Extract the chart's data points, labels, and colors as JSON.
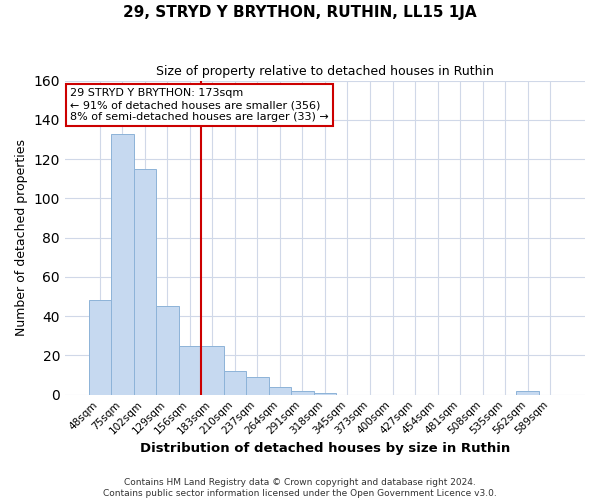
{
  "title": "29, STRYD Y BRYTHON, RUTHIN, LL15 1JA",
  "subtitle": "Size of property relative to detached houses in Ruthin",
  "xlabel": "Distribution of detached houses by size in Ruthin",
  "ylabel": "Number of detached properties",
  "categories": [
    "48sqm",
    "75sqm",
    "102sqm",
    "129sqm",
    "156sqm",
    "183sqm",
    "210sqm",
    "237sqm",
    "264sqm",
    "291sqm",
    "318sqm",
    "345sqm",
    "373sqm",
    "400sqm",
    "427sqm",
    "454sqm",
    "481sqm",
    "508sqm",
    "535sqm",
    "562sqm",
    "589sqm"
  ],
  "values": [
    48,
    133,
    115,
    45,
    25,
    25,
    12,
    9,
    4,
    2,
    1,
    0,
    0,
    0,
    0,
    0,
    0,
    0,
    0,
    2,
    0
  ],
  "bar_color": "#c6d9f0",
  "bar_edge_color": "#8db3d8",
  "background_color": "#ffffff",
  "grid_color": "#d0d8e8",
  "vline_x": 5,
  "vline_color": "#cc0000",
  "annotation_text": "29 STRYD Y BRYTHON: 173sqm\n← 91% of detached houses are smaller (356)\n8% of semi-detached houses are larger (33) →",
  "annotation_box_color": "#ffffff",
  "annotation_box_edge_color": "#cc0000",
  "ylim": [
    0,
    160
  ],
  "title_fontsize": 11,
  "subtitle_fontsize": 9,
  "footer": "Contains HM Land Registry data © Crown copyright and database right 2024.\nContains public sector information licensed under the Open Government Licence v3.0."
}
